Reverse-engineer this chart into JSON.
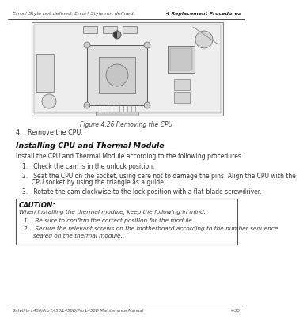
{
  "bg_color": "#ffffff",
  "header_left": "Error! Style not defined. Error! Style not defined.",
  "header_right": "4 Replacement Procedures",
  "footer_left": "Satellite L450/Pro L450/L450D/Pro L450D Maintenance Manual",
  "footer_right": "4-35",
  "figure_caption": "Figure 4.26 Removing the CPU",
  "step4_text": "4.   Remove the CPU.",
  "section_title": "Installing CPU and Thermal Module",
  "section_intro": "Install the CPU and Thermal Module according to the following procedures.",
  "step1": "1.   Check the cam is in the unlock position.",
  "step2a": "2.   Seat the CPU on the socket, using care not to damage the pins. Align the CPU with the",
  "step2b": "     CPU socket by using the triangle as a guide.",
  "step3": "3.   Rotate the cam clockwise to the lock position with a flat-blade screwdriver.",
  "caution_title": "CAUTION:",
  "caution_intro": "When installing the thermal module, keep the following in mind:",
  "caution_1": "1.   Be sure to confirm the correct position for the module.",
  "caution_2a": "2.   Secure the relevant screws on the motherboard according to the number sequence",
  "caution_2b": "     sealed on the thermal module."
}
